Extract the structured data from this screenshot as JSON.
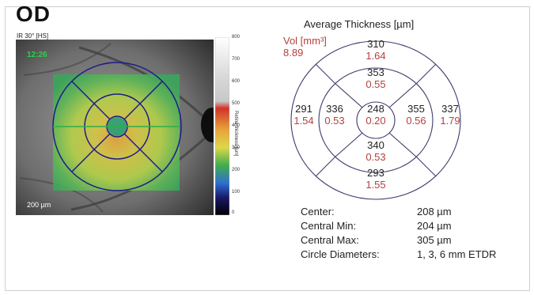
{
  "eye": "OD",
  "scan_label": "IR 30° [HS]",
  "fundus_overlay_text": "12:26",
  "scale_bar_label": "200 µm",
  "color_scale": {
    "ticks": [
      "800",
      "700",
      "600",
      "500",
      "400",
      "300",
      "200",
      "100",
      "0"
    ],
    "title": "Retina thickness [µm]",
    "colors": [
      "#ffffff",
      "#e9e9e9",
      "#c8c8c8",
      "#d1332a",
      "#e7a23a",
      "#ddd84a",
      "#40ad4d",
      "#2e6fd1",
      "#1a1a6a",
      "#000000"
    ]
  },
  "thickness_map": {
    "title": "Average Thickness [µm]",
    "vol_label": "Vol [mm³]",
    "vol_value": "8.89",
    "sectors": {
      "center": {
        "thickness": "248",
        "volume": "0.20"
      },
      "inner_superior": {
        "thickness": "353",
        "volume": "0.55"
      },
      "inner_nasal": {
        "thickness": "355",
        "volume": "0.56"
      },
      "inner_inferior": {
        "thickness": "340",
        "volume": "0.53"
      },
      "inner_temporal": {
        "thickness": "336",
        "volume": "0.53"
      },
      "outer_superior": {
        "thickness": "310",
        "volume": "1.64"
      },
      "outer_nasal": {
        "thickness": "337",
        "volume": "1.79"
      },
      "outer_inferior": {
        "thickness": "293",
        "volume": "1.55"
      },
      "outer_temporal": {
        "thickness": "291",
        "volume": "1.54"
      }
    }
  },
  "stats": [
    {
      "label": "Center:",
      "value": "208 µm"
    },
    {
      "label": "Central Min:",
      "value": "204 µm"
    },
    {
      "label": "Central Max:",
      "value": "305 µm"
    },
    {
      "label": "Circle Diameters:",
      "value": "1, 3, 6 mm ETDR"
    }
  ]
}
